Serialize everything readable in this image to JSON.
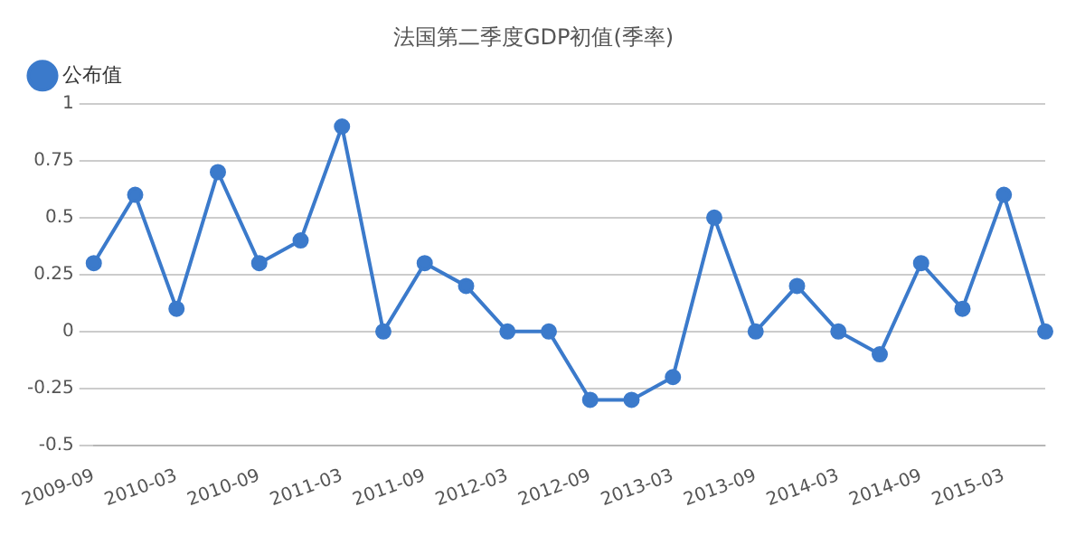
{
  "chart_data": {
    "type": "line",
    "title": "法国第二季度GDP初值(季率)",
    "categories": [
      "2009-09",
      null,
      "2010-03",
      null,
      "2010-09",
      null,
      "2011-03",
      null,
      "2011-09",
      null,
      "2012-03",
      null,
      "2012-09",
      null,
      "2013-03",
      null,
      "2013-09",
      null,
      "2014-03",
      null,
      "2014-09",
      null,
      "2015-03",
      null
    ],
    "series": [
      {
        "name": "公布值",
        "color": "#3b7acb",
        "values": [
          0.3,
          0.6,
          0.1,
          0.7,
          0.3,
          0.4,
          0.9,
          0,
          0.3,
          0.2,
          0,
          0,
          -0.3,
          -0.3,
          -0.2,
          0.5,
          0,
          0.2,
          0,
          -0.1,
          0.3,
          0.1,
          0.6,
          0
        ]
      }
    ],
    "ylim": [
      -0.5,
      1
    ],
    "yticks": [
      -0.5,
      -0.25,
      0,
      0.25,
      0.5,
      0.75,
      1
    ],
    "grid": "y",
    "legend": "top left",
    "marker": "circle",
    "line_style": "solid"
  }
}
